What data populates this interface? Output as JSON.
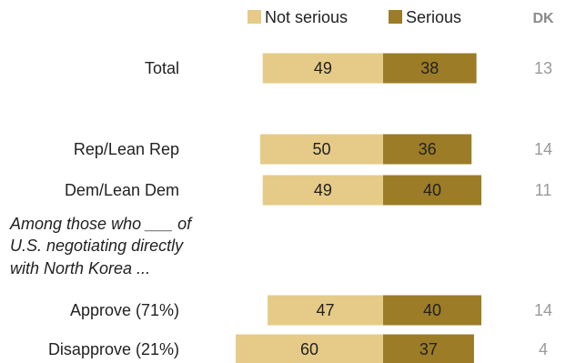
{
  "chart_data": {
    "type": "bar",
    "stacked": true,
    "diverging": true,
    "series": [
      {
        "name": "Not serious",
        "color": "#e5cb87"
      },
      {
        "name": "Serious",
        "color": "#9c7c26"
      }
    ],
    "dk_header": "DK",
    "rows": [
      {
        "label": "Total",
        "not_serious": 49,
        "serious": 38,
        "dk": 13
      },
      {
        "label": "Rep/Lean Rep",
        "not_serious": 50,
        "serious": 36,
        "dk": 14
      },
      {
        "label": "Dem/Lean Dem",
        "not_serious": 49,
        "serious": 40,
        "dk": 11
      },
      {
        "label": "Approve (71%)",
        "not_serious": 47,
        "serious": 40,
        "dk": 14
      },
      {
        "label": "Disapprove (21%)",
        "not_serious": 60,
        "serious": 37,
        "dk": 4
      }
    ],
    "annotation": [
      "Among those who ___ of",
      "U.S. negotiating directly",
      "with North Korea ..."
    ]
  }
}
